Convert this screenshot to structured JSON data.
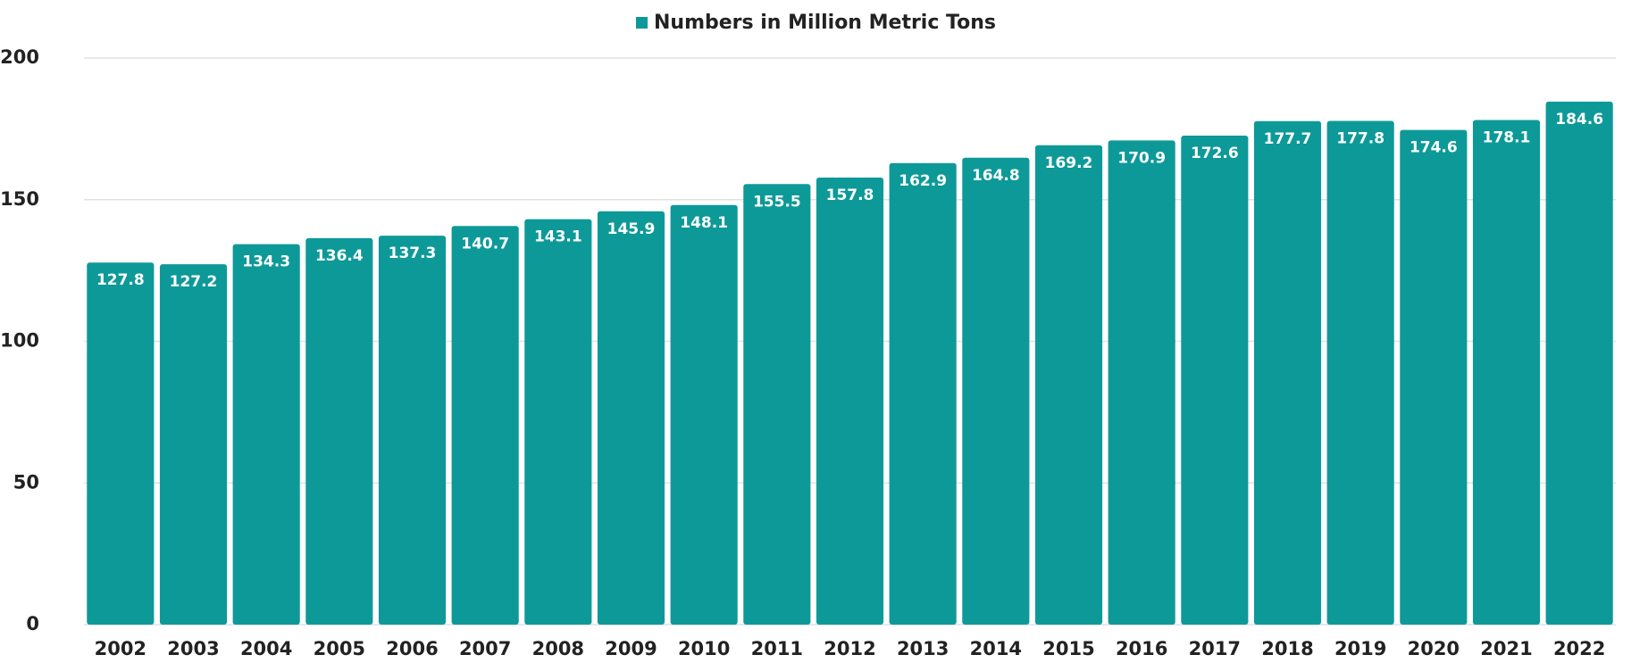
{
  "chart_data": {
    "type": "bar",
    "categories": [
      "2002",
      "2003",
      "2004",
      "2005",
      "2006",
      "2007",
      "2008",
      "2009",
      "2010",
      "2011",
      "2012",
      "2013",
      "2014",
      "2015",
      "2016",
      "2017",
      "2018",
      "2019",
      "2020",
      "2021",
      "2022"
    ],
    "series": [
      {
        "name": "Numbers in Million  Metric Tons",
        "color": "#0e9999",
        "values": [
          127.8,
          127.2,
          134.3,
          136.4,
          137.3,
          140.7,
          143.1,
          145.9,
          148.1,
          155.5,
          157.8,
          162.9,
          164.8,
          169.2,
          170.9,
          172.6,
          177.7,
          177.8,
          174.6,
          178.1,
          184.6
        ]
      }
    ],
    "ylim": [
      0,
      200
    ],
    "yticks": [
      0,
      50,
      100,
      150,
      200
    ],
    "grid": true,
    "legend": "top"
  }
}
